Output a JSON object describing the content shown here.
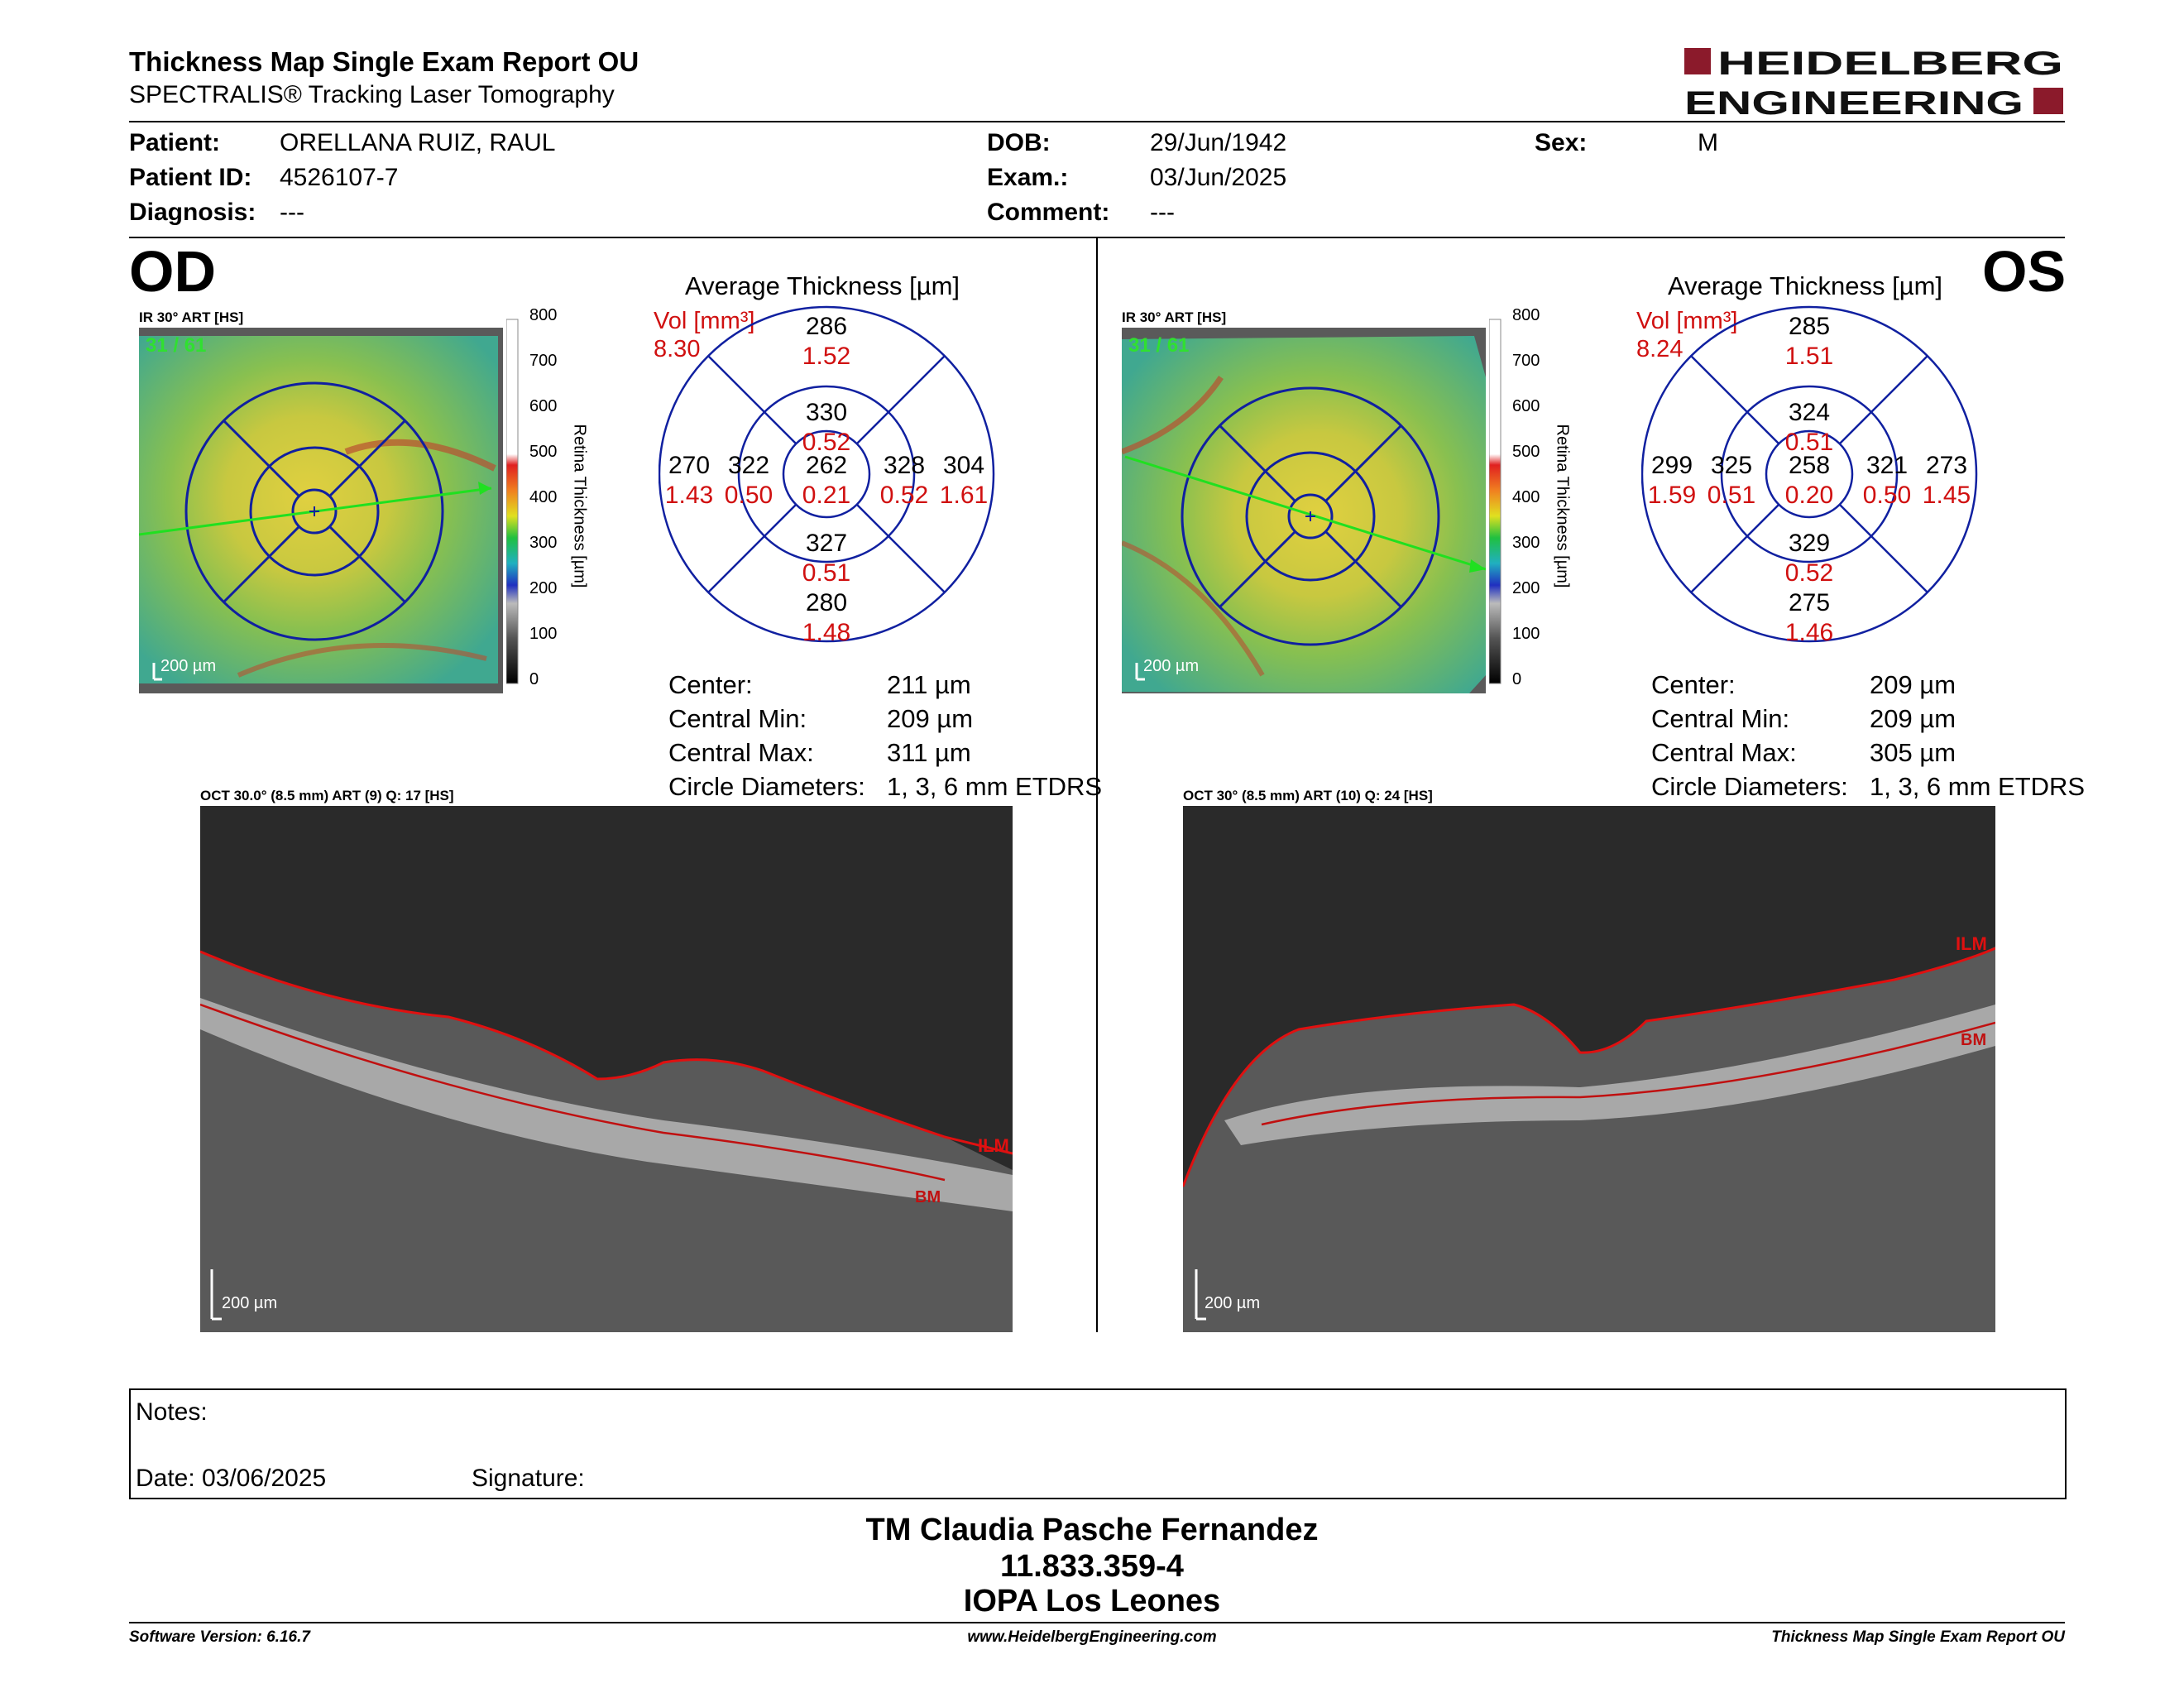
{
  "header": {
    "title": "Thickness Map Single Exam Report OU",
    "subtitle": "SPECTRALIS® Tracking Laser Tomography",
    "logo_line1": "HEIDELBERG",
    "logo_line2": "ENGINEERING"
  },
  "patient": {
    "patient_label": "Patient:",
    "patient_value": "ORELLANA RUIZ, RAUL",
    "id_label": "Patient ID:",
    "id_value": "4526107-7",
    "diagnosis_label": "Diagnosis:",
    "diagnosis_value": "---",
    "dob_label": "DOB:",
    "dob_value": "29/Jun/1942",
    "exam_label": "Exam.:",
    "exam_value": "03/Jun/2025",
    "comment_label": "Comment:",
    "comment_value": "---",
    "sex_label": "Sex:",
    "sex_value": "M"
  },
  "colorbar": {
    "ticks": [
      "800",
      "700",
      "600",
      "500",
      "400",
      "300",
      "200",
      "100",
      "0"
    ],
    "label": "Retina  Thickness [µm]"
  },
  "od": {
    "eye": "OD",
    "ir_label": "IR 30° ART [HS]",
    "scan_count": "31 / 61",
    "scale": "200 µm",
    "avg_title": "Average Thickness [µm]",
    "vol_label": "Vol [mm³]",
    "vol_value": "8.30",
    "grid": {
      "outer_sup": "286",
      "outer_sup_vol": "1.52",
      "inner_sup": "330",
      "inner_sup_vol": "0.52",
      "outer_temp": "270",
      "outer_temp_vol": "1.43",
      "inner_temp": "322",
      "inner_temp_vol": "0.50",
      "center": "262",
      "center_vol": "0.21",
      "inner_nas": "328",
      "inner_nas_vol": "0.52",
      "outer_nas": "304",
      "outer_nas_vol": "1.61",
      "inner_inf": "327",
      "inner_inf_vol": "0.51",
      "outer_inf": "280",
      "outer_inf_vol": "1.48"
    },
    "stats": {
      "center_label": "Center:",
      "center_value": "211 µm",
      "min_label": "Central Min:",
      "min_value": "209 µm",
      "max_label": "Central Max:",
      "max_value": "311 µm",
      "diam_label": "Circle Diameters:",
      "diam_value": "1, 3, 6 mm ETDRS"
    },
    "oct_label": "OCT 30.0° (8.5 mm) ART (9) Q: 17 [HS]",
    "ilm": "ILM",
    "bm": "BM",
    "oct_scale": "200 µm"
  },
  "os": {
    "eye": "OS",
    "ir_label": "IR 30° ART [HS]",
    "scan_count": "31 / 61",
    "scale": "200 µm",
    "avg_title": "Average Thickness [µm]",
    "vol_label": "Vol [mm³]",
    "vol_value": "8.24",
    "grid": {
      "outer_sup": "285",
      "outer_sup_vol": "1.51",
      "inner_sup": "324",
      "inner_sup_vol": "0.51",
      "outer_temp": "273",
      "outer_temp_vol": "1.45",
      "inner_temp": "321",
      "inner_temp_vol": "0.50",
      "center": "258",
      "center_vol": "0.20",
      "inner_nas": "325",
      "inner_nas_vol": "0.51",
      "outer_nas": "299",
      "outer_nas_vol": "1.59",
      "inner_inf": "329",
      "inner_inf_vol": "0.52",
      "outer_inf": "275",
      "outer_inf_vol": "1.46"
    },
    "stats": {
      "center_label": "Center:",
      "center_value": "209 µm",
      "min_label": "Central Min:",
      "min_value": "209 µm",
      "max_label": "Central Max:",
      "max_value": "305 µm",
      "diam_label": "Circle Diameters:",
      "diam_value": "1, 3, 6 mm ETDRS"
    },
    "oct_label": "OCT 30° (8.5 mm) ART (10) Q: 24 [HS]",
    "ilm": "ILM",
    "bm": "BM",
    "oct_scale": "200 µm"
  },
  "notes": {
    "notes_label": "Notes:",
    "date_label": "Date: 03/06/2025",
    "signature_label": "Signature:"
  },
  "signature_block": {
    "name": "TM Claudia Pasche Fernandez",
    "rut": "11.833.359-4",
    "clinic": "IOPA Los Leones"
  },
  "footer": {
    "version": "Software Version: 6.16.7",
    "url": "www.HeidelbergEngineering.com",
    "report": "Thickness Map Single Exam Report OU"
  },
  "colors": {
    "brand": "#8b1a2b",
    "volume_red": "#d01010",
    "grid_blue": "#1020a0",
    "segmentation_red": "#e01010"
  }
}
